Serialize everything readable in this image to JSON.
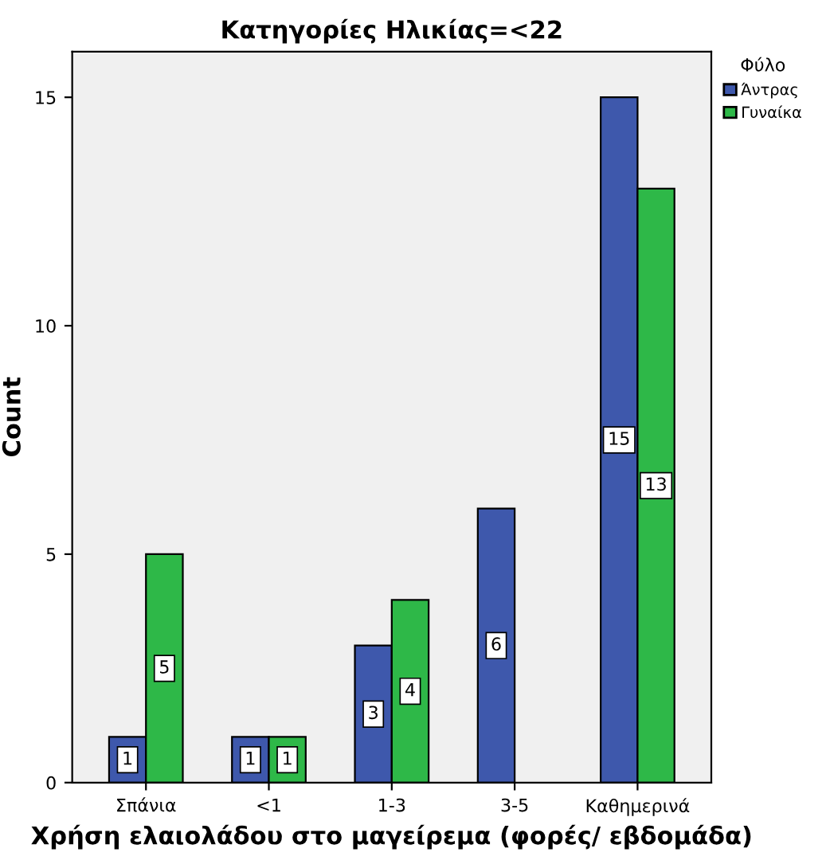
{
  "chart_data": {
    "type": "bar",
    "title": "Κατηγορίες Ηλικίας=<22",
    "xlabel": "Χρήση ελαιολάδου στο μαγείρεμα (φορές/ εβδομάδα)",
    "ylabel": "Count",
    "legend_title": "Φύλο",
    "categories": [
      "Σπάνια",
      "<1",
      "1-3",
      "3-5",
      "Καθημερινά"
    ],
    "series": [
      {
        "name": "Άντρας",
        "color": "#3e58ac",
        "values": [
          1,
          1,
          3,
          6,
          15
        ]
      },
      {
        "name": "Γυναίκα",
        "color": "#2eb848",
        "values": [
          5,
          1,
          4,
          null,
          13
        ]
      }
    ],
    "ylim": [
      0,
      16
    ],
    "yticks": [
      0,
      5,
      10,
      15
    ],
    "grid": false,
    "legend": "right",
    "data_labels": true
  }
}
